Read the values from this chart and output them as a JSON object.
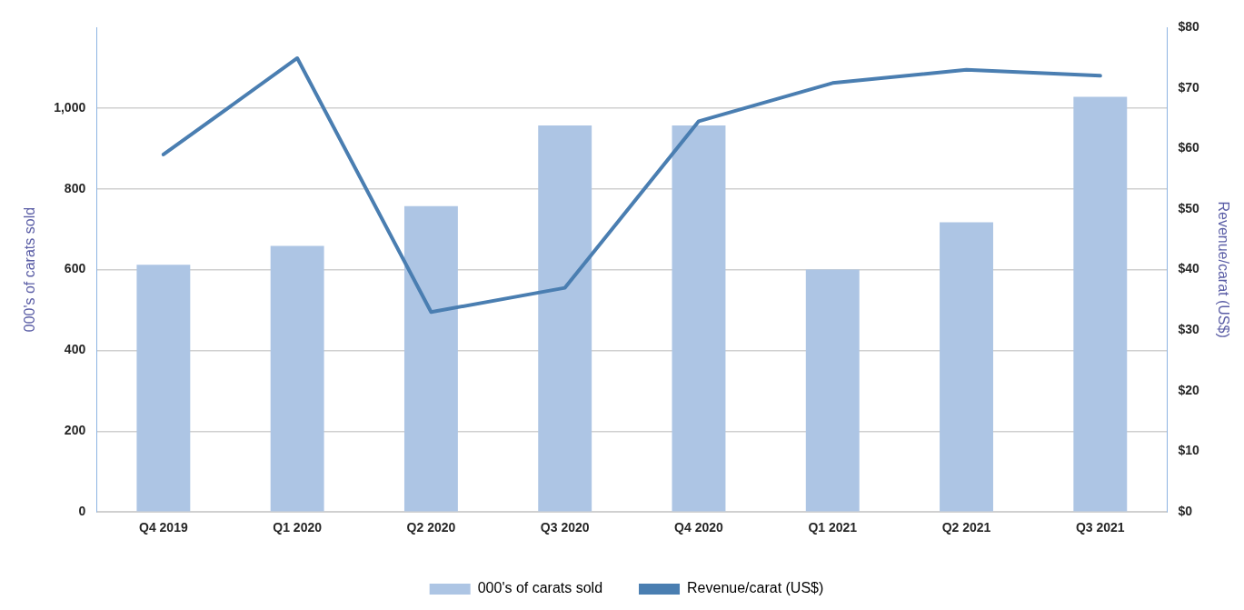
{
  "chart_data": {
    "type": "bar",
    "categories": [
      "Q4 2019",
      "Q1 2020",
      "Q2 2020",
      "Q3 2020",
      "Q4 2020",
      "Q1 2021",
      "Q2 2021",
      "Q3 2021"
    ],
    "ylabel": "000's of carats sold",
    "y2label": "Revenue/carat (US$)",
    "series": [
      {
        "name": "000's of carats sold",
        "color": "#adc5e4",
        "values": [
          612,
          659,
          757,
          957,
          957,
          600,
          717,
          1028
        ]
      },
      {
        "name": "Revenue/carat (US$)",
        "type": "line",
        "axis": "y2",
        "color": "#4a7eb1",
        "values": [
          59,
          74.9,
          33,
          37,
          64.5,
          70.8,
          73,
          72
        ]
      }
    ],
    "ylim": [
      0,
      1200
    ],
    "yticks": [
      0,
      200,
      400,
      600,
      800,
      {
        "value": 1000,
        "label": "1,000"
      }
    ],
    "y2lim": [
      0,
      80
    ],
    "y2ticks": [
      {
        "value": 0,
        "label": "$0"
      },
      {
        "value": 10,
        "label": "$10"
      },
      {
        "value": 20,
        "label": "$20"
      },
      {
        "value": 30,
        "label": "$30"
      },
      {
        "value": 40,
        "label": "$40"
      },
      {
        "value": 50,
        "label": "$50"
      },
      {
        "value": 60,
        "label": "$60"
      },
      {
        "value": 70,
        "label": "$70"
      },
      {
        "value": 80,
        "label": "$80"
      }
    ],
    "grid": "y",
    "legend": "bottom",
    "marker": "none",
    "line_style": "solid"
  }
}
